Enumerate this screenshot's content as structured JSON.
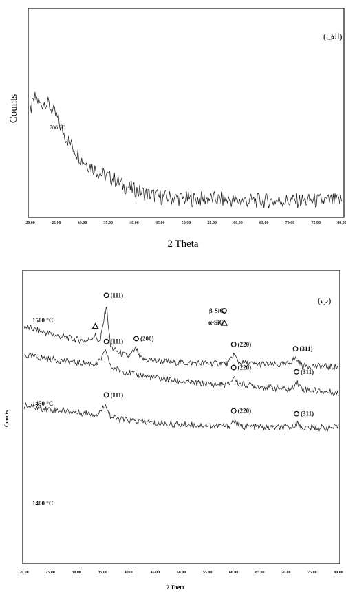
{
  "chart_data": [
    {
      "type": "line",
      "panel_label": "(الف)",
      "xlabel": "2 Theta",
      "ylabel": "Counts",
      "xlim": [
        20,
        80
      ],
      "ylim": [
        0,
        100
      ],
      "x_ticks": [
        "20.00",
        "25.00",
        "30.00",
        "35.00",
        "40.00",
        "45.00",
        "50.00",
        "55.00",
        "60.00",
        "65.00",
        "70.00",
        "75.00",
        "80.00"
      ],
      "series": [
        {
          "name": "700 °C",
          "label": "700 °C",
          "x": [
            20,
            21,
            22,
            23,
            24,
            25,
            26,
            27,
            28,
            29,
            30,
            32,
            34,
            36,
            38,
            40,
            42,
            45,
            50,
            55,
            60,
            65,
            70,
            75,
            80
          ],
          "y": [
            55,
            62,
            58,
            60,
            56,
            52,
            45,
            40,
            36,
            32,
            28,
            24,
            20,
            18,
            14,
            12,
            10,
            8,
            7,
            7,
            6,
            6,
            6,
            6,
            6
          ]
        }
      ]
    },
    {
      "type": "line",
      "panel_label": "(ب)",
      "xlabel": "2 Theta",
      "ylabel": "Counts",
      "xlim": [
        20,
        80
      ],
      "x_ticks": [
        "20.00",
        "25.00",
        "30.00",
        "35.00",
        "40.00",
        "45.00",
        "50.00",
        "55.00",
        "60.00",
        "65.00",
        "70.00",
        "75.00",
        "80.00"
      ],
      "legend": [
        {
          "label": "β-SiC",
          "marker": "circle"
        },
        {
          "label": "α-SiC",
          "marker": "triangle"
        }
      ],
      "series": [
        {
          "name": "1500 °C",
          "label": "1500 °C",
          "x": [
            20,
            22,
            24,
            26,
            28,
            30,
            32,
            33.5,
            34.5,
            35.7,
            36.5,
            38,
            40,
            41.4,
            42,
            44,
            46,
            50,
            55,
            59,
            60,
            61,
            64,
            68,
            70,
            71.8,
            73,
            76,
            80
          ],
          "y": [
            100,
            96,
            92,
            88,
            85,
            82,
            80,
            88,
            78,
            130,
            72,
            64,
            58,
            70,
            56,
            54,
            52,
            50,
            49,
            49,
            62,
            50,
            48,
            47,
            47,
            56,
            46,
            45,
            44
          ],
          "peaks": [
            {
              "x": 35.7,
              "label": "(111)",
              "marker": "circle"
            },
            {
              "x": 41.4,
              "label": "(200)",
              "marker": "circle"
            },
            {
              "x": 60.0,
              "label": "(220)",
              "marker": "circle"
            },
            {
              "x": 71.8,
              "label": "(311)",
              "marker": "circle"
            },
            {
              "x": 33.6,
              "label": "",
              "marker": "triangle"
            }
          ]
        },
        {
          "name": "1450 °C",
          "label": "1450 °C",
          "x": [
            20,
            22,
            24,
            26,
            28,
            30,
            32,
            34,
            35.7,
            36.5,
            38,
            40,
            44,
            48,
            52,
            56,
            59,
            60,
            61,
            64,
            68,
            71,
            72,
            73,
            76,
            80
          ],
          "y": [
            60,
            58,
            56,
            54,
            52,
            50,
            49,
            48,
            66,
            44,
            40,
            36,
            30,
            26,
            22,
            20,
            19,
            30,
            21,
            18,
            15,
            13,
            24,
            14,
            11,
            8
          ],
          "peaks": [
            {
              "x": 35.7,
              "label": "(111)",
              "marker": "circle"
            },
            {
              "x": 60.0,
              "label": "(220)",
              "marker": "circle"
            },
            {
              "x": 72.0,
              "label": "(311)",
              "marker": "circle"
            }
          ]
        },
        {
          "name": "1400 °C",
          "label": "1400 °C",
          "x": [
            20,
            22,
            24,
            26,
            28,
            30,
            32,
            34,
            35.7,
            36.5,
            38,
            40,
            44,
            48,
            52,
            56,
            59,
            60,
            61,
            64,
            68,
            71,
            72,
            73,
            76,
            80
          ],
          "y": [
            -10,
            -12,
            -14,
            -15,
            -17,
            -19,
            -20,
            -21,
            -8,
            -25,
            -28,
            -30,
            -33,
            -35,
            -36,
            -37,
            -38,
            -30,
            -38,
            -39,
            -40,
            -40,
            -34,
            -40,
            -40,
            -40
          ],
          "peaks": [
            {
              "x": 35.7,
              "label": "(111)",
              "marker": "circle"
            },
            {
              "x": 60.0,
              "label": "(220)",
              "marker": "circle"
            },
            {
              "x": 72.0,
              "label": "(311)",
              "marker": "circle"
            }
          ]
        }
      ]
    }
  ]
}
